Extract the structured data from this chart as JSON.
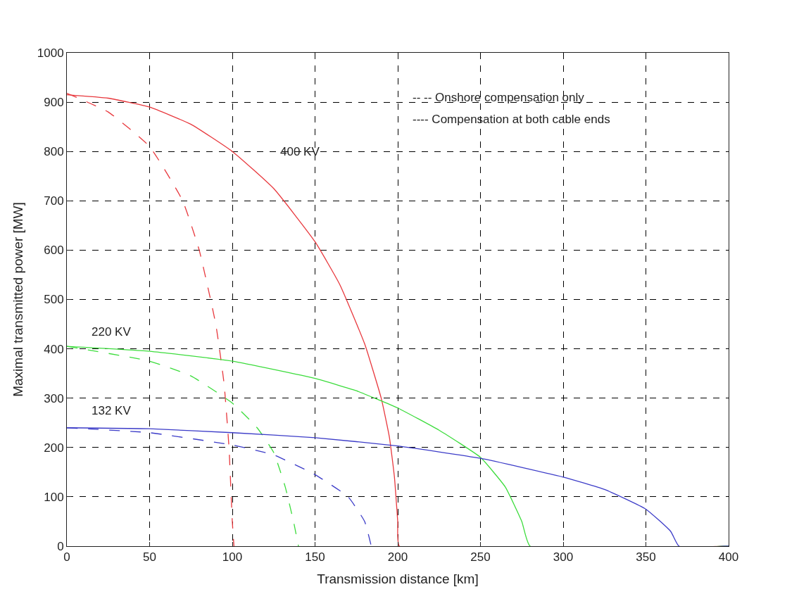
{
  "chart_data": {
    "type": "line",
    "xlabel": "Transmission distance [km]",
    "ylabel": "Maximal transmitted power [MW]",
    "xlim": [
      0,
      400
    ],
    "xticks": [
      0,
      50,
      100,
      150,
      200,
      250,
      300,
      350,
      400
    ],
    "ylim": [
      0,
      1000
    ],
    "yticks": [
      0,
      100,
      200,
      300,
      400,
      500,
      600,
      700,
      800,
      900,
      1000
    ],
    "grid": true,
    "marker": "none",
    "series": [
      {
        "color": "#e8383d",
        "line_style": "solid",
        "x": [
          0,
          25,
          50,
          75,
          100,
          125,
          150,
          165,
          180,
          190,
          195,
          198,
          200,
          201,
          400
        ],
        "values": [
          915,
          908,
          890,
          855,
          800,
          725,
          617,
          530,
          410,
          300,
          220,
          140,
          50,
          0,
          0
        ]
      },
      {
        "color": "#e8383d",
        "line_style": "dashed",
        "x": [
          0,
          25,
          50,
          70,
          80,
          90,
          95,
          98,
          100,
          101
        ],
        "values": [
          918,
          880,
          810,
          700,
          600,
          450,
          330,
          200,
          50,
          0
        ]
      },
      {
        "color": "#3cdc3c",
        "line_style": "solid",
        "x": [
          0,
          50,
          100,
          150,
          175,
          200,
          225,
          250,
          265,
          275,
          280,
          400
        ],
        "values": [
          405,
          395,
          375,
          340,
          315,
          280,
          235,
          180,
          120,
          50,
          0,
          0
        ]
      },
      {
        "color": "#3cdc3c",
        "line_style": "dashed",
        "x": [
          0,
          50,
          75,
          100,
          115,
          125,
          132,
          137,
          140
        ],
        "values": [
          405,
          375,
          345,
          290,
          240,
          190,
          120,
          50,
          0
        ]
      },
      {
        "color": "#3c3cc8",
        "line_style": "solid",
        "x": [
          0,
          50,
          100,
          150,
          200,
          250,
          300,
          325,
          350,
          365,
          370,
          400
        ],
        "values": [
          240,
          238,
          230,
          220,
          203,
          178,
          140,
          115,
          75,
          30,
          0,
          0
        ]
      },
      {
        "color": "#3c3cc8",
        "line_style": "dashed",
        "x": [
          0,
          50,
          100,
          125,
          150,
          170,
          180,
          184
        ],
        "values": [
          240,
          230,
          205,
          185,
          145,
          100,
          50,
          0
        ]
      }
    ],
    "annotations": [
      "400 KV",
      "220 KV",
      "132 KV",
      "-- -- Onshore compensation only",
      "---- Compensation at both cable ends"
    ]
  }
}
